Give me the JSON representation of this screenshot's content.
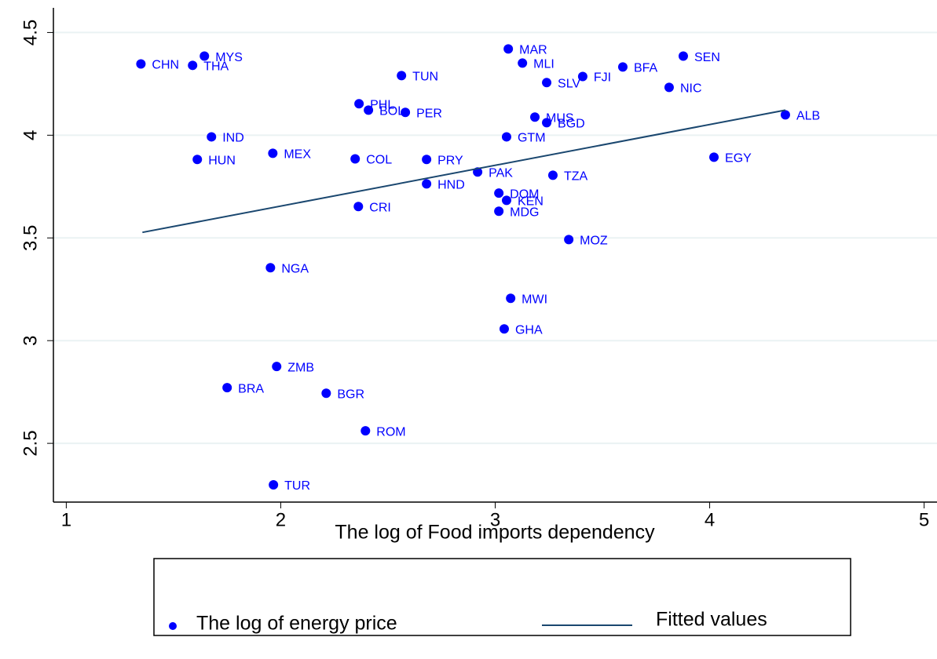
{
  "chart_data": {
    "type": "scatter",
    "xlabel": "The log of Food imports dependency",
    "xlim": [
      0.94,
      5.06
    ],
    "ylim": [
      2.214,
      4.62
    ],
    "xticks": [
      1,
      2,
      3,
      4,
      5
    ],
    "yticks": [
      2.5,
      3,
      3.5,
      4,
      4.5
    ],
    "grid": true,
    "series": [
      {
        "name": "The log of energy price",
        "type": "scatter",
        "color": "#0000ff",
        "labels": [
          "CHN",
          "THA",
          "MYS",
          "TUN",
          "MAR",
          "MLI",
          "SLV",
          "FJI",
          "BFA",
          "SEN",
          "NIC",
          "PHL",
          "BOL",
          "PER",
          "MUS",
          "BGD",
          "ALB",
          "IND",
          "GTM",
          "MEX",
          "HUN",
          "COL",
          "PRY",
          "EGY",
          "PAK",
          "TZA",
          "HND",
          "DOM",
          "KEN",
          "MDG",
          "CRI",
          "MOZ",
          "NGA",
          "MWI",
          "GHA",
          "ZMB",
          "BRA",
          "BGR",
          "ROM",
          "TUR"
        ],
        "x": [
          1.348,
          1.589,
          1.644,
          2.563,
          3.061,
          3.127,
          3.24,
          3.408,
          3.595,
          3.877,
          3.811,
          2.365,
          2.409,
          2.581,
          3.185,
          3.24,
          4.353,
          1.677,
          3.053,
          1.963,
          1.611,
          2.347,
          2.68,
          4.02,
          2.918,
          3.269,
          2.68,
          3.017,
          3.053,
          3.017,
          2.362,
          3.343,
          1.952,
          3.072,
          3.042,
          1.981,
          1.75,
          2.212,
          2.395,
          1.966
        ],
        "values": [
          4.347,
          4.34,
          4.385,
          4.29,
          4.42,
          4.351,
          4.256,
          4.286,
          4.332,
          4.385,
          4.233,
          4.153,
          4.122,
          4.111,
          4.088,
          4.061,
          4.099,
          3.992,
          3.992,
          3.912,
          3.882,
          3.885,
          3.882,
          3.893,
          3.821,
          3.805,
          3.763,
          3.718,
          3.683,
          3.63,
          3.653,
          3.492,
          3.355,
          3.206,
          3.057,
          2.874,
          2.771,
          2.744,
          2.561,
          2.298
        ]
      },
      {
        "name": "Fitted values",
        "type": "line",
        "color": "#1a476f",
        "x": [
          1.355,
          4.353
        ],
        "values": [
          3.527,
          4.122
        ]
      }
    ]
  }
}
